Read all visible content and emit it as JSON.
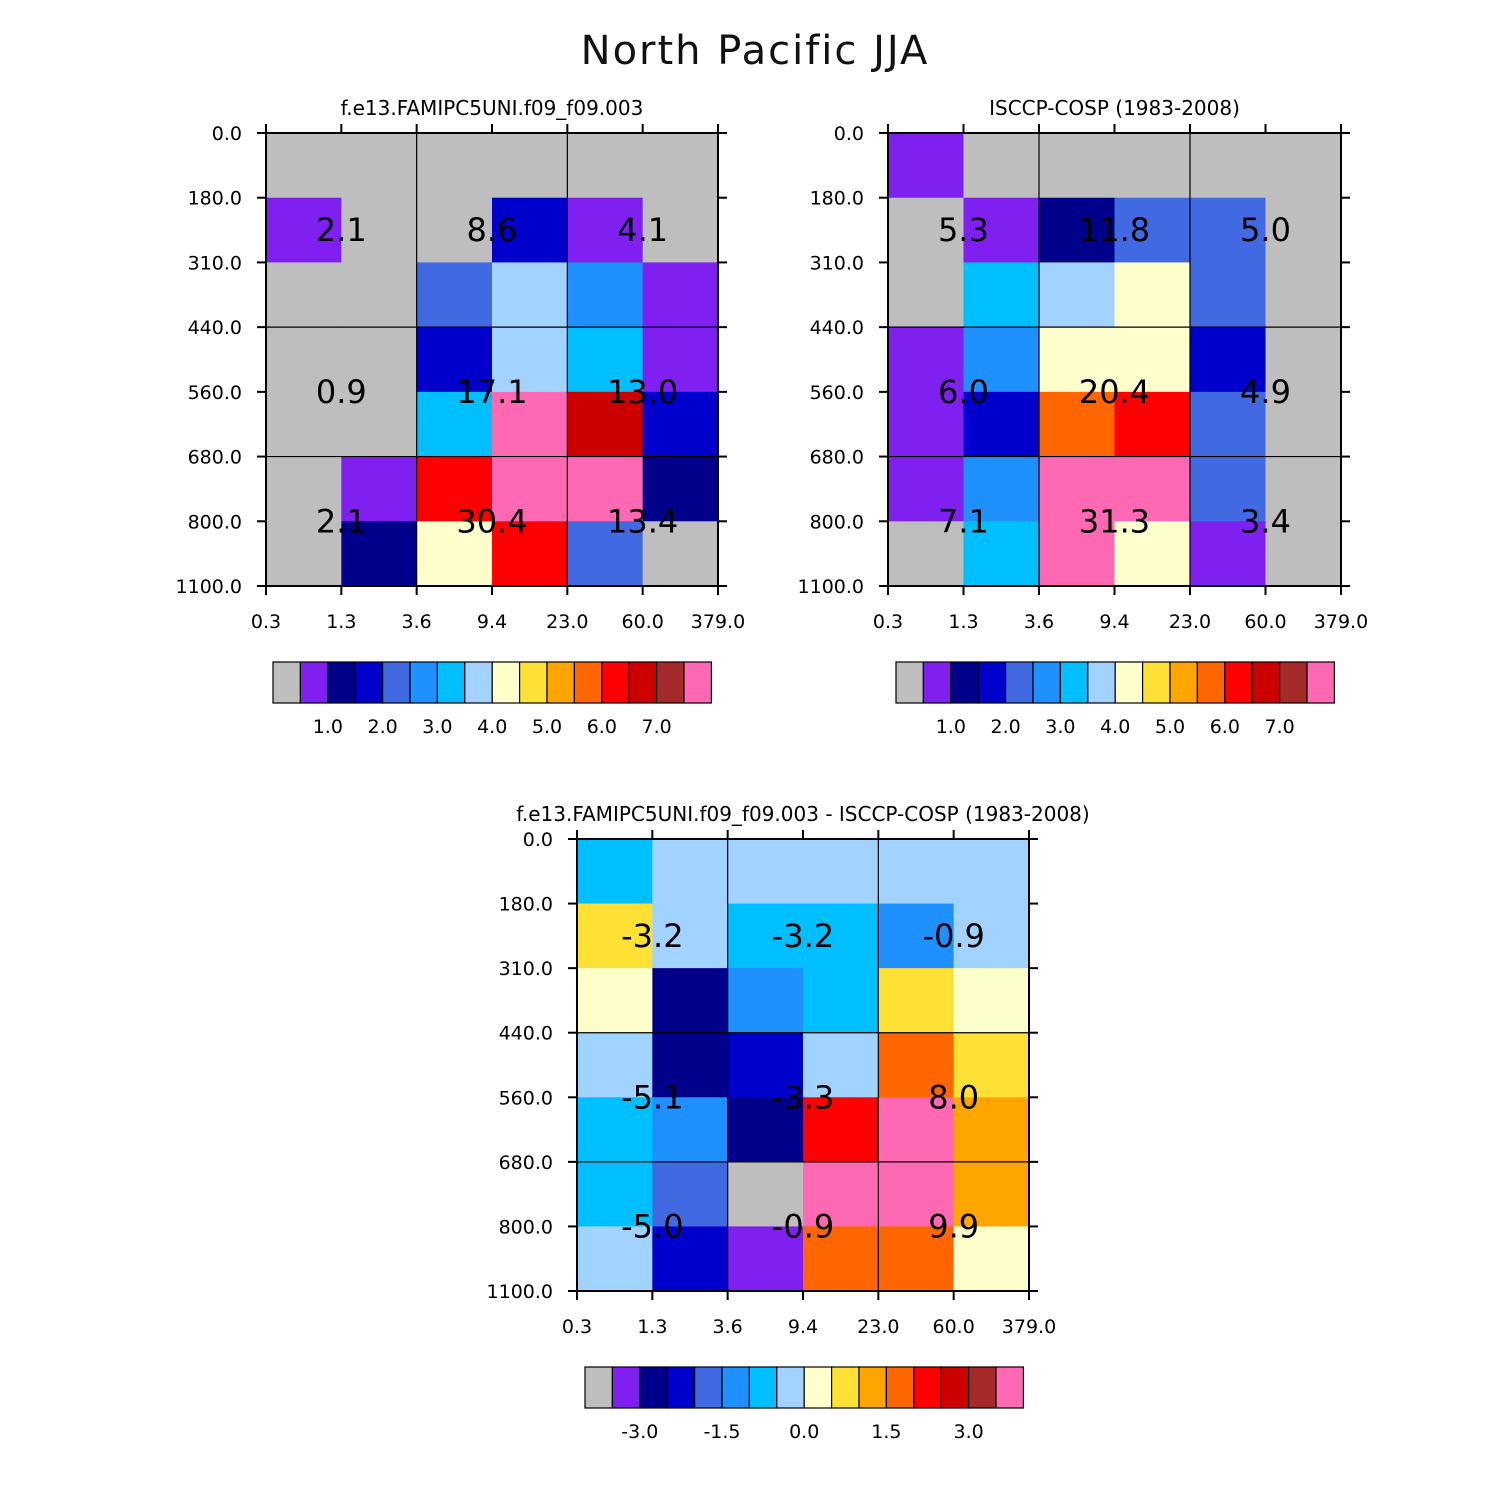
{
  "title": "North Pacific JJA",
  "chart_data": [
    {
      "type": "heatmap",
      "title": "f.e13.FAMIPC5UNI.f09_f09.003",
      "x_tick_labels": [
        "0.3",
        "1.3",
        "3.6",
        "9.4",
        "23.0",
        "60.0",
        "379.0"
      ],
      "y_tick_labels": [
        "0.0",
        "180.0",
        "310.0",
        "440.0",
        "560.0",
        "680.0",
        "800.0",
        "1100.0"
      ],
      "cell_colors": [
        [
          "#BEBEBE",
          "#BEBEBE",
          "#BEBEBE",
          "#BEBEBE",
          "#BEBEBE",
          "#BEBEBE"
        ],
        [
          "#8020F0",
          "#BEBEBE",
          "#BEBEBE",
          "#0000CD",
          "#8020F0",
          "#BEBEBE"
        ],
        [
          "#BEBEBE",
          "#BEBEBE",
          "#4169E1",
          "#A2D2FF",
          "#1E90FF",
          "#8020F0"
        ],
        [
          "#BEBEBE",
          "#BEBEBE",
          "#0000CD",
          "#A2D2FF",
          "#00BFFF",
          "#8020F0"
        ],
        [
          "#BEBEBE",
          "#BEBEBE",
          "#00BFFF",
          "#FF69B4",
          "#CD0000",
          "#0000CD"
        ],
        [
          "#BEBEBE",
          "#8020F0",
          "#FF0000",
          "#FF69B4",
          "#FF69B4",
          "#00008B"
        ],
        [
          "#BEBEBE",
          "#00008B",
          "#FFFFCC",
          "#FF0000",
          "#4169E1",
          "#BEBEBE"
        ]
      ],
      "block_values": [
        [
          "2.1",
          "8.6",
          "4.1"
        ],
        [
          "0.9",
          "17.1",
          "13.0"
        ],
        [
          "2.1",
          "30.4",
          "13.4"
        ]
      ],
      "colorbar": {
        "colors": [
          "#BEBEBE",
          "#8020F0",
          "#00008B",
          "#0000CD",
          "#4169E1",
          "#1E90FF",
          "#00BFFF",
          "#A2D2FF",
          "#FFFFCC",
          "#FFE135",
          "#FFA500",
          "#FF6600",
          "#FF0000",
          "#CD0000",
          "#A52A2A",
          "#FF69B4"
        ],
        "labels": [
          "1.0",
          "2.0",
          "3.0",
          "4.0",
          "5.0",
          "6.0",
          "7.0"
        ],
        "label_after_box": [
          2,
          4,
          6,
          8,
          10,
          12,
          14
        ]
      }
    },
    {
      "type": "heatmap",
      "title": "ISCCP-COSP (1983-2008)",
      "x_tick_labels": [
        "0.3",
        "1.3",
        "3.6",
        "9.4",
        "23.0",
        "60.0",
        "379.0"
      ],
      "y_tick_labels": [
        "0.0",
        "180.0",
        "310.0",
        "440.0",
        "560.0",
        "680.0",
        "800.0",
        "1100.0"
      ],
      "cell_colors": [
        [
          "#8020F0",
          "#BEBEBE",
          "#BEBEBE",
          "#BEBEBE",
          "#BEBEBE",
          "#BEBEBE"
        ],
        [
          "#BEBEBE",
          "#8020F0",
          "#00008B",
          "#4169E1",
          "#4169E1",
          "#BEBEBE"
        ],
        [
          "#BEBEBE",
          "#00BFFF",
          "#A2D2FF",
          "#FFFFCC",
          "#4169E1",
          "#BEBEBE"
        ],
        [
          "#8020F0",
          "#1E90FF",
          "#FFFFCC",
          "#FFFFCC",
          "#0000CD",
          "#BEBEBE"
        ],
        [
          "#8020F0",
          "#0000CD",
          "#FF6600",
          "#FF0000",
          "#4169E1",
          "#BEBEBE"
        ],
        [
          "#8020F0",
          "#1E90FF",
          "#FF69B4",
          "#FF69B4",
          "#4169E1",
          "#BEBEBE"
        ],
        [
          "#BEBEBE",
          "#00BFFF",
          "#FF69B4",
          "#FFFFCC",
          "#8020F0",
          "#BEBEBE"
        ]
      ],
      "block_values": [
        [
          "5.3",
          "11.8",
          "5.0"
        ],
        [
          "6.0",
          "20.4",
          "4.9"
        ],
        [
          "7.1",
          "31.3",
          "3.4"
        ]
      ],
      "colorbar": {
        "colors": [
          "#BEBEBE",
          "#8020F0",
          "#00008B",
          "#0000CD",
          "#4169E1",
          "#1E90FF",
          "#00BFFF",
          "#A2D2FF",
          "#FFFFCC",
          "#FFE135",
          "#FFA500",
          "#FF6600",
          "#FF0000",
          "#CD0000",
          "#A52A2A",
          "#FF69B4"
        ],
        "labels": [
          "1.0",
          "2.0",
          "3.0",
          "4.0",
          "5.0",
          "6.0",
          "7.0"
        ],
        "label_after_box": [
          2,
          4,
          6,
          8,
          10,
          12,
          14
        ]
      }
    },
    {
      "type": "heatmap",
      "title": "f.e13.FAMIPC5UNI.f09_f09.003 - ISCCP-COSP (1983-2008)",
      "x_tick_labels": [
        "0.3",
        "1.3",
        "3.6",
        "9.4",
        "23.0",
        "60.0",
        "379.0"
      ],
      "y_tick_labels": [
        "0.0",
        "180.0",
        "310.0",
        "440.0",
        "560.0",
        "680.0",
        "800.0",
        "1100.0"
      ],
      "cell_colors": [
        [
          "#00BFFF",
          "#A2D2FF",
          "#A2D2FF",
          "#A2D2FF",
          "#A2D2FF",
          "#A2D2FF"
        ],
        [
          "#FFE135",
          "#A2D2FF",
          "#00BFFF",
          "#00BFFF",
          "#1E90FF",
          "#A2D2FF"
        ],
        [
          "#FFFFCC",
          "#00008B",
          "#1E90FF",
          "#00BFFF",
          "#FFE135",
          "#FFFFCC"
        ],
        [
          "#A2D2FF",
          "#00008B",
          "#0000CD",
          "#A2D2FF",
          "#FF6600",
          "#FFE135"
        ],
        [
          "#00BFFF",
          "#1E90FF",
          "#00008B",
          "#FF0000",
          "#FF69B4",
          "#FFA500"
        ],
        [
          "#00BFFF",
          "#4169E1",
          "#BEBEBE",
          "#FF69B4",
          "#FF69B4",
          "#FFA500"
        ],
        [
          "#A2D2FF",
          "#0000CD",
          "#8020F0",
          "#FF6600",
          "#FF6600",
          "#FFFFCC"
        ]
      ],
      "block_values": [
        [
          "-3.2",
          "-3.2",
          "-0.9"
        ],
        [
          "-5.1",
          "-3.3",
          "8.0"
        ],
        [
          "-5.0",
          "-0.9",
          "9.9"
        ]
      ],
      "colorbar": {
        "colors": [
          "#BEBEBE",
          "#8020F0",
          "#00008B",
          "#0000CD",
          "#4169E1",
          "#1E90FF",
          "#00BFFF",
          "#A2D2FF",
          "#FFFFCC",
          "#FFE135",
          "#FFA500",
          "#FF6600",
          "#FF0000",
          "#CD0000",
          "#A52A2A",
          "#FF69B4"
        ],
        "labels": [
          "-3.0",
          "-1.5",
          "0.0",
          "1.5",
          "3.0"
        ],
        "label_after_box": [
          2,
          5,
          8,
          11,
          14
        ]
      }
    }
  ]
}
